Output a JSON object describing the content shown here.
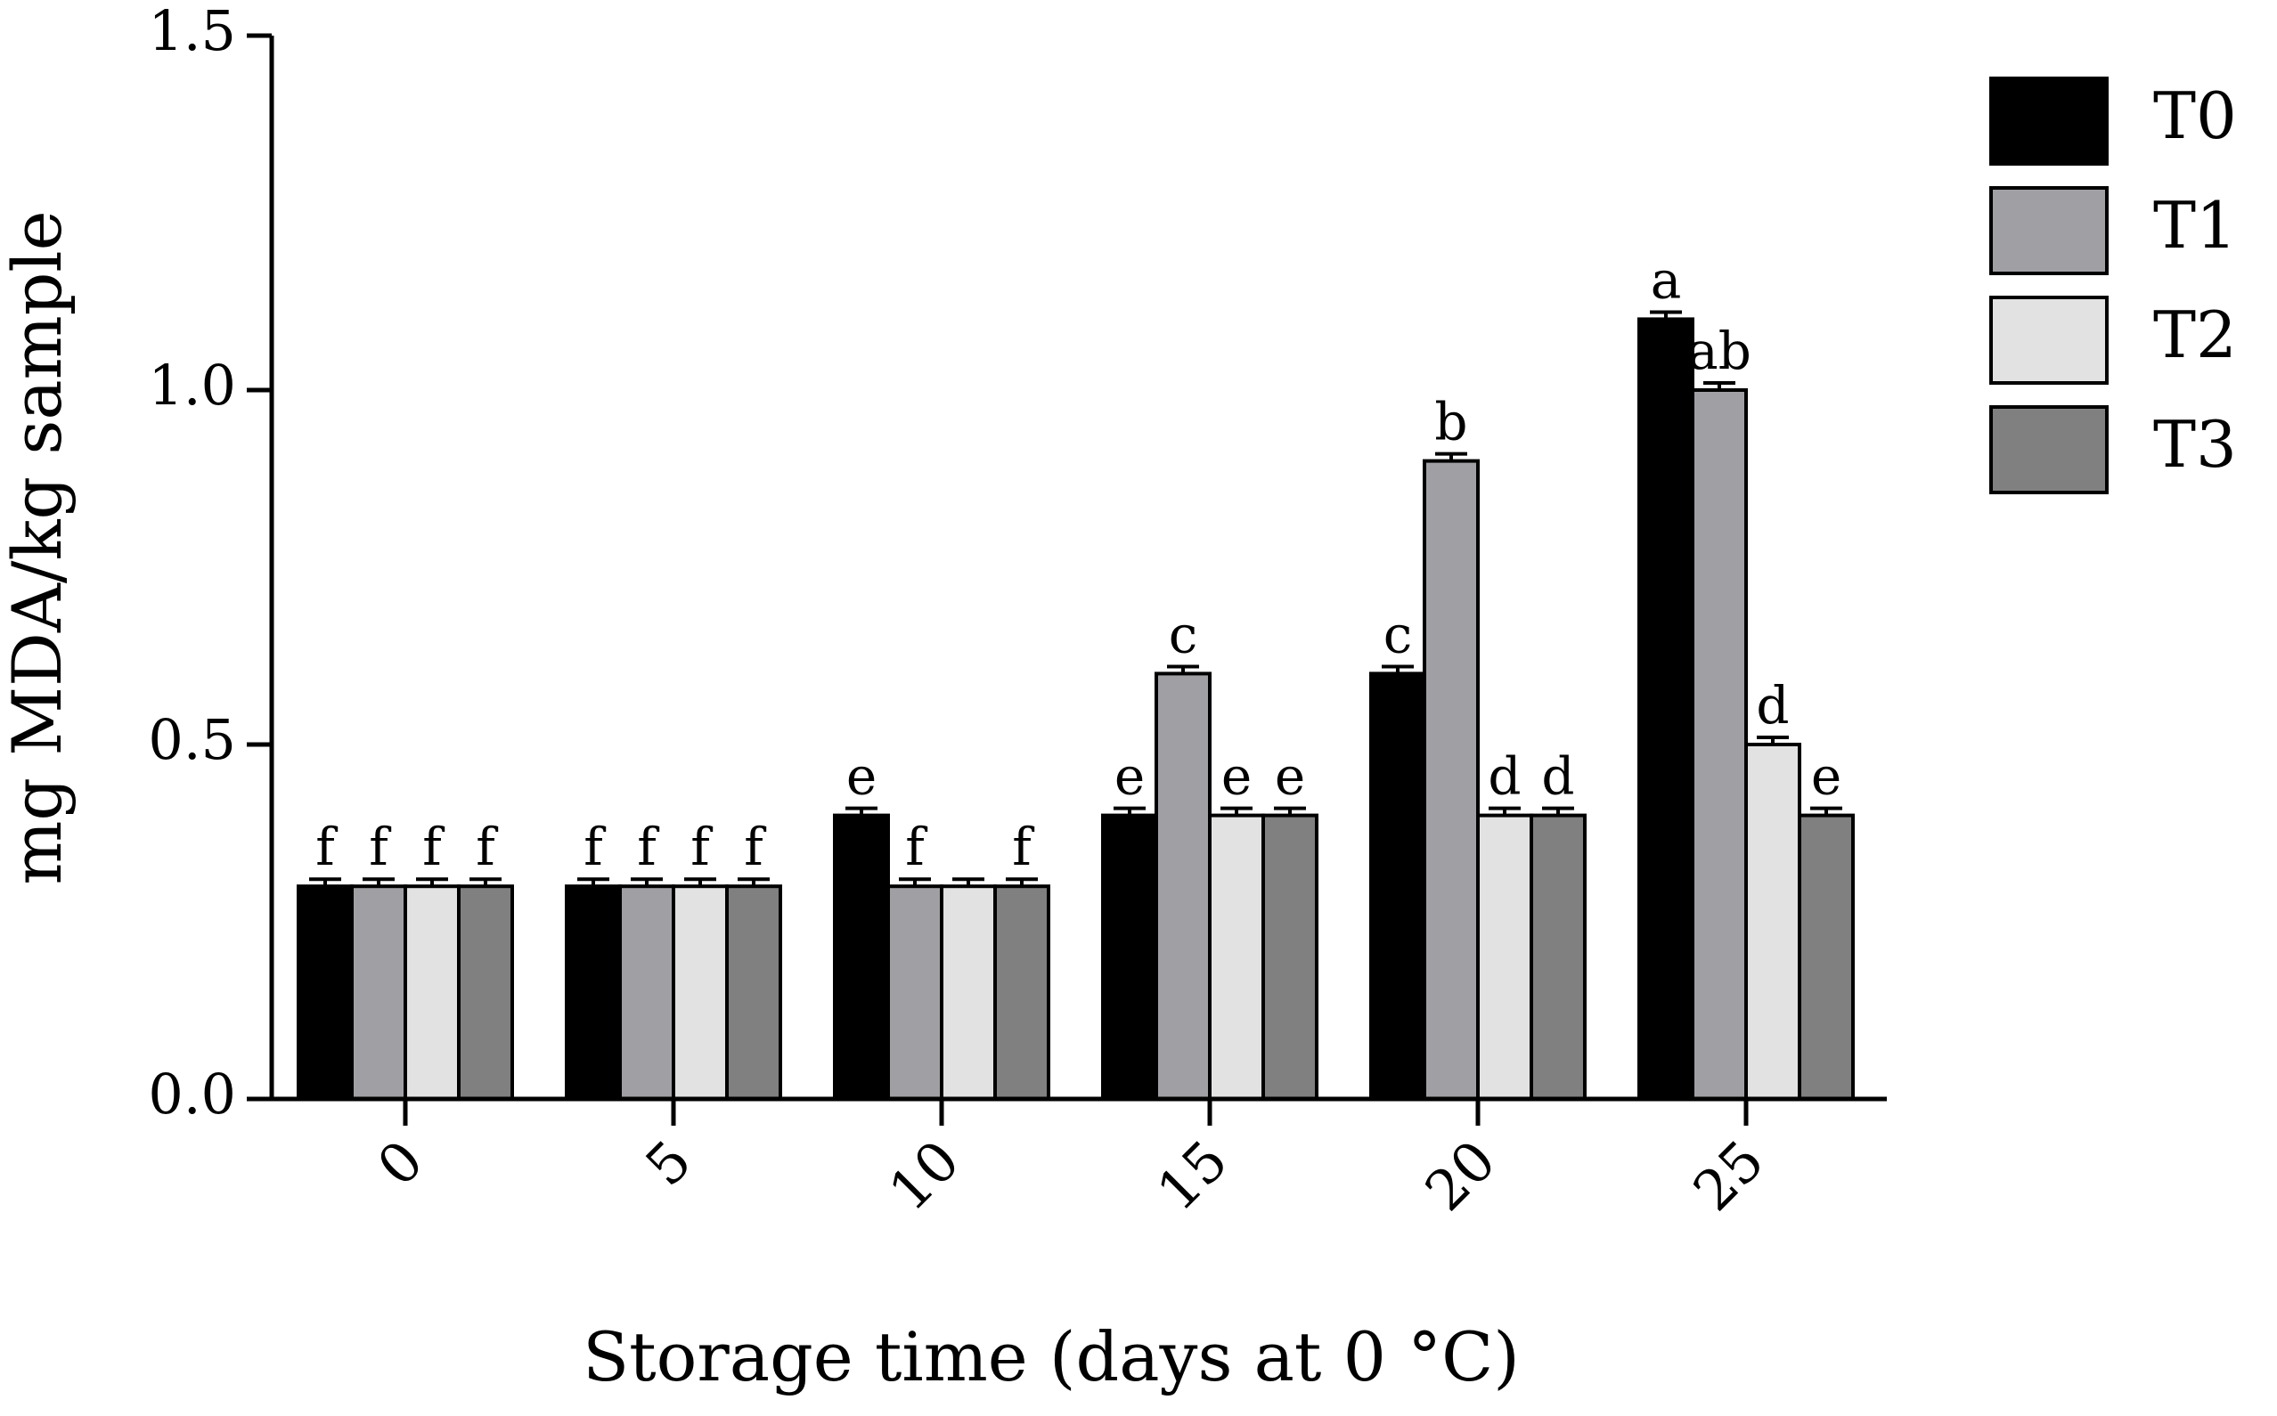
{
  "chart_data": {
    "type": "bar",
    "title": "",
    "xlabel": "Storage time (days at 0 °C)",
    "ylabel": "mg MDA/kg sample",
    "ylim": [
      0,
      1.5
    ],
    "yticks": [
      "0.0",
      "0.5",
      "1.0",
      "1.5"
    ],
    "ytick_values": [
      0,
      0.5,
      1.0,
      1.5
    ],
    "categories": [
      "0",
      "5",
      "10",
      "15",
      "20",
      "25"
    ],
    "legend_placement": "top-right, outside plot",
    "grid": false,
    "series": [
      {
        "name": "T0",
        "color": "#000000",
        "values": [
          0.3,
          0.3,
          0.4,
          0.4,
          0.6,
          1.1
        ],
        "errors": [
          0.01,
          0.01,
          0.01,
          0.01,
          0.01,
          0.01
        ],
        "letters": [
          "f",
          "f",
          "e",
          "e",
          "c",
          "a"
        ]
      },
      {
        "name": "T1",
        "color": "#a0a0a4",
        "values": [
          0.3,
          0.3,
          0.3,
          0.6,
          0.9,
          1.0
        ],
        "errors": [
          0.01,
          0.01,
          0.01,
          0.01,
          0.01,
          0.01
        ],
        "letters": [
          "f",
          "f",
          "f",
          "c",
          "b",
          "ab"
        ]
      },
      {
        "name": "T2",
        "color": "#e2e2e2",
        "values": [
          0.3,
          0.3,
          0.3,
          0.4,
          0.4,
          0.5
        ],
        "errors": [
          0.01,
          0.01,
          0.01,
          0.01,
          0.01,
          0.01
        ],
        "letters": [
          "f",
          "f",
          "",
          "e",
          "d",
          "d"
        ]
      },
      {
        "name": "T3",
        "color": "#808080",
        "values": [
          0.3,
          0.3,
          0.3,
          0.4,
          0.4,
          0.4
        ],
        "errors": [
          0.01,
          0.01,
          0.01,
          0.01,
          0.01,
          0.01
        ],
        "letters": [
          "f",
          "f",
          "f",
          "e",
          "d",
          "e"
        ]
      }
    ]
  }
}
